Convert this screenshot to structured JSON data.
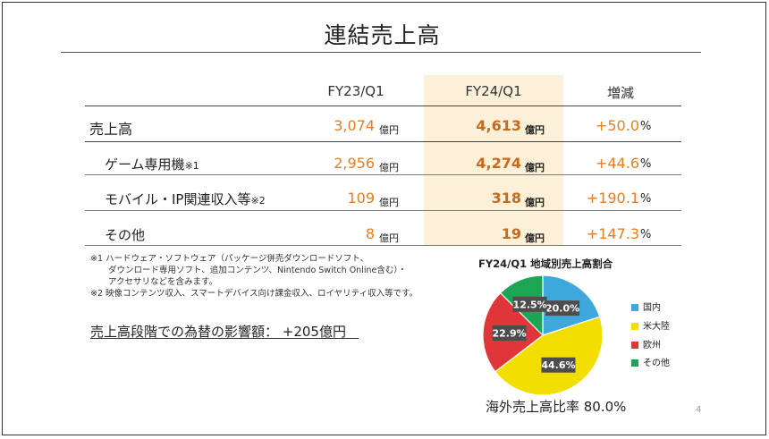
{
  "title": "連結売上高",
  "table": {
    "columns": [
      "FY23/Q1",
      "FY24/Q1",
      "増減"
    ],
    "rows": [
      {
        "label": "売上高",
        "note": "",
        "prev": "3,074",
        "prev_unit": "億円",
        "curr": "4,613",
        "curr_unit": "億円",
        "change": "+50.0",
        "change_unit": "%"
      },
      {
        "label": "ゲーム専用機",
        "note": "※1",
        "prev": "2,956",
        "prev_unit": "億円",
        "curr": "4,274",
        "curr_unit": "億円",
        "change": "+44.6",
        "change_unit": "%"
      },
      {
        "label": "モバイル・IP関連収入等",
        "note": "※2",
        "prev": "109",
        "prev_unit": "億円",
        "curr": "318",
        "curr_unit": "億円",
        "change": "+190.1",
        "change_unit": "%"
      },
      {
        "label": "その他",
        "note": "",
        "prev": "8",
        "prev_unit": "億円",
        "curr": "19",
        "curr_unit": "億円",
        "change": "+147.3",
        "change_unit": "%"
      }
    ]
  },
  "footnotes": [
    "※1 ハードウェア・ソフトウェア（パッケージ併売ダウンロードソフト、",
    "ダウンロード専用ソフト、追加コンテンツ、Nintendo Switch Online含む）・",
    "アクセサリなどを含みます。",
    "※2 映像コンテンツ収入、スマートデバイス向け課金収入、ロイヤリティ収入等です。"
  ],
  "fx_impact": "売上高段階での為替の影響額：  +205億円",
  "chart_data": {
    "type": "pie",
    "title": "FY24/Q1 地域別売上高割合",
    "categories": [
      "国内",
      "米大陸",
      "欧州",
      "その他"
    ],
    "values": [
      20.0,
      44.6,
      22.9,
      12.5
    ],
    "labels": [
      "20.0%",
      "44.6%",
      "22.9%",
      "12.5%"
    ],
    "colors": [
      "#3ea8dd",
      "#f2de00",
      "#e0363a",
      "#1aa655"
    ],
    "legend": "right"
  },
  "overseas_ratio": "海外売上高比率 80.0%",
  "page_number": "4"
}
